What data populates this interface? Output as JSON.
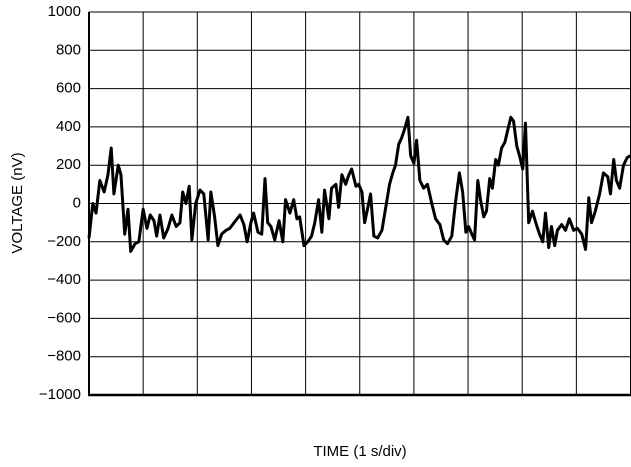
{
  "chart_data": {
    "type": "line",
    "x_label": "TIME (1 s/div)",
    "y_label": "VOLTAGE (nV)",
    "xlim": [
      0,
      10
    ],
    "xticks": [
      0,
      1,
      2,
      3,
      4,
      5,
      6,
      7,
      8,
      9,
      10
    ],
    "ylim": [
      -1000,
      1000
    ],
    "yticks": [
      {
        "value": -1000,
        "label": "−1000"
      },
      {
        "value": -800,
        "label": "−800"
      },
      {
        "value": -600,
        "label": "−600"
      },
      {
        "value": -400,
        "label": "−400"
      },
      {
        "value": -200,
        "label": "−200"
      },
      0,
      200,
      400,
      600,
      800,
      1000
    ],
    "grid": true,
    "x": [
      0,
      0.07,
      0.13,
      0.2,
      0.28,
      0.35,
      0.41,
      0.46,
      0.54,
      0.59,
      0.66,
      0.72,
      0.77,
      0.85,
      0.92,
      1.0,
      1.07,
      1.13,
      1.2,
      1.25,
      1.31,
      1.38,
      1.46,
      1.53,
      1.61,
      1.68,
      1.73,
      1.79,
      1.85,
      1.9,
      1.97,
      2.05,
      2.12,
      2.2,
      2.25,
      2.32,
      2.38,
      2.45,
      2.53,
      2.6,
      2.68,
      2.79,
      2.86,
      2.92,
      2.99,
      3.04,
      3.12,
      3.19,
      3.25,
      3.3,
      3.36,
      3.43,
      3.51,
      3.58,
      3.63,
      3.71,
      3.78,
      3.84,
      3.89,
      3.97,
      4.04,
      4.11,
      4.17,
      4.24,
      4.3,
      4.35,
      4.43,
      4.48,
      4.56,
      4.61,
      4.67,
      4.74,
      4.8,
      4.85,
      4.93,
      4.98,
      5.04,
      5.09,
      5.15,
      5.2,
      5.26,
      5.33,
      5.41,
      5.48,
      5.55,
      5.61,
      5.66,
      5.72,
      5.77,
      5.83,
      5.89,
      5.94,
      6.0,
      6.05,
      6.11,
      6.18,
      6.25,
      6.33,
      6.4,
      6.48,
      6.55,
      6.62,
      6.7,
      6.77,
      6.84,
      6.9,
      6.96,
      7.01,
      7.07,
      7.12,
      7.18,
      7.23,
      7.29,
      7.34,
      7.4,
      7.45,
      7.51,
      7.56,
      7.62,
      7.68,
      7.73,
      7.79,
      7.84,
      7.9,
      7.95,
      8.01,
      8.06,
      8.12,
      8.19,
      8.25,
      8.32,
      8.38,
      8.43,
      8.49,
      8.54,
      8.6,
      8.65,
      8.73,
      8.8,
      8.87,
      8.95,
      9.02,
      9.1,
      9.17,
      9.23,
      9.28,
      9.35,
      9.43,
      9.5,
      9.58,
      9.63,
      9.69,
      9.74,
      9.8,
      9.87,
      9.94,
      10.0
    ],
    "series": [
      {
        "color": "#000000",
        "values": [
          -180,
          0,
          -50,
          120,
          60,
          150,
          290,
          50,
          200,
          150,
          -160,
          -30,
          -250,
          -210,
          -200,
          -30,
          -130,
          -60,
          -90,
          -170,
          -60,
          -180,
          -130,
          -60,
          -120,
          -100,
          60,
          0,
          90,
          -190,
          0,
          70,
          50,
          -190,
          60,
          -70,
          -220,
          -160,
          -140,
          -130,
          -100,
          -60,
          -110,
          -200,
          -100,
          -50,
          -150,
          -160,
          130,
          -100,
          -120,
          -190,
          -90,
          -200,
          20,
          -50,
          20,
          -80,
          -70,
          -220,
          -200,
          -170,
          -100,
          20,
          -150,
          70,
          -80,
          80,
          100,
          -20,
          150,
          100,
          150,
          180,
          90,
          100,
          60,
          -100,
          -20,
          50,
          -170,
          -180,
          -140,
          -20,
          100,
          160,
          200,
          310,
          340,
          390,
          450,
          250,
          210,
          330,
          120,
          80,
          100,
          0,
          -80,
          -110,
          -190,
          -210,
          -170,
          10,
          160,
          60,
          -150,
          -120,
          -160,
          -190,
          120,
          20,
          -70,
          -40,
          130,
          80,
          230,
          200,
          290,
          320,
          380,
          450,
          430,
          300,
          250,
          180,
          420,
          -100,
          -40,
          -100,
          -160,
          -200,
          -50,
          -230,
          -120,
          -220,
          -140,
          -110,
          -140,
          -80,
          -140,
          -130,
          -160,
          -240,
          30,
          -100,
          -40,
          50,
          160,
          140,
          50,
          230,
          120,
          80,
          200,
          240,
          250
        ]
      }
    ]
  }
}
